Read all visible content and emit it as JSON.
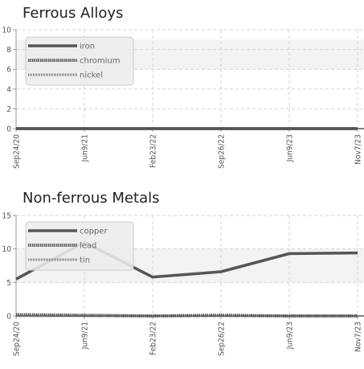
{
  "chart_data": [
    {
      "type": "line",
      "title": "Ferrous Alloys",
      "x": [
        "Sep24/20",
        "Jun9/21",
        "Feb23/22",
        "Sep26/22",
        "Jun9/23",
        "Nov7/23"
      ],
      "ylim": [
        0,
        10
      ],
      "yticks": [
        0,
        2,
        4,
        6,
        8,
        10
      ],
      "grid": true,
      "legend": "top-left",
      "series": [
        {
          "name": "iron",
          "style": "solid",
          "color": "#555555",
          "values": [
            0,
            0,
            0,
            0,
            0,
            0
          ]
        },
        {
          "name": "chromium",
          "style": "dotted",
          "color": "#555555",
          "values": [
            0,
            0,
            0,
            0,
            0,
            0
          ]
        },
        {
          "name": "nickel",
          "style": "dotted-fine",
          "color": "#777777",
          "values": [
            0,
            0,
            0,
            0,
            0,
            0
          ]
        }
      ]
    },
    {
      "type": "line",
      "title": "Non-ferrous Metals",
      "x": [
        "Sep24/20",
        "Jun9/21",
        "Feb23/22",
        "Sep26/22",
        "Jun9/23",
        "Nov7/23"
      ],
      "ylim": [
        0,
        15
      ],
      "yticks": [
        0,
        5,
        10,
        15
      ],
      "grid": true,
      "legend": "top-left",
      "series": [
        {
          "name": "copper",
          "style": "solid",
          "color": "#555555",
          "values": [
            5.5,
            11,
            5.8,
            6.6,
            9.3,
            9.4
          ]
        },
        {
          "name": "lead",
          "style": "dotted",
          "color": "#555555",
          "values": [
            0.2,
            0.1,
            0,
            0.1,
            0,
            0
          ]
        },
        {
          "name": "tin",
          "style": "dotted-fine",
          "color": "#777777",
          "values": [
            0,
            0,
            0,
            0,
            0,
            0
          ]
        }
      ]
    }
  ]
}
